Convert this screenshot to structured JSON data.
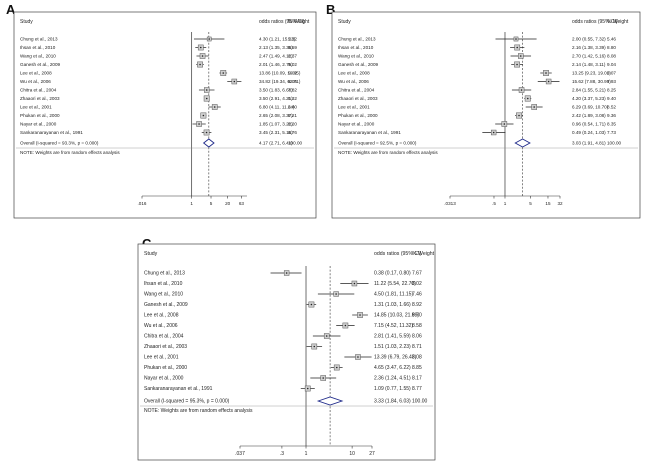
{
  "chart_data": [
    {
      "type": "forest",
      "panel": "A",
      "header": {
        "study": "Study",
        "ci": "odds ratios (95% CI)",
        "weight": "% Weight"
      },
      "xscale": "log",
      "xlim": [
        0.016,
        100
      ],
      "xticks": [
        ".016",
        "1",
        "5",
        "20",
        "63"
      ],
      "xtick_values": [
        0.016,
        1,
        5,
        20,
        63
      ],
      "null_line": 1,
      "rows": [
        {
          "study": "Chung et al., 2013",
          "or": 4.3,
          "lo": 1.21,
          "hi": 15.23,
          "ci_text": "4.30 (1.21, 15.23)",
          "weight": "5.22"
        },
        {
          "study": "Ihsan et al., 2010",
          "or": 2.13,
          "lo": 1.35,
          "hi": 3.36,
          "ci_text": "2.13 (1.35, 3.36)",
          "weight": "8.59"
        },
        {
          "study": "Wang et al., 2010",
          "or": 2.47,
          "lo": 1.49,
          "hi": 4.12,
          "ci_text": "2.47 (1.49, 4.12)",
          "weight": "8.37"
        },
        {
          "study": "Ganesh et al., 2009",
          "or": 2.01,
          "lo": 1.46,
          "hi": 2.75,
          "ci_text": "2.01 (1.46, 2.75)",
          "weight": "9.02"
        },
        {
          "study": "Lee et al., 2008",
          "or": 13.86,
          "lo": 10.09,
          "hi": 19.05,
          "ci_text": "13.86 (10.09, 19.05)",
          "weight": "9.02"
        },
        {
          "study": "Wu et al., 2006",
          "or": 34.82,
          "lo": 19.34,
          "hi": 62.71,
          "ci_text": "34.82 (19.34, 62.71)",
          "weight": "8.06"
        },
        {
          "study": "Chitra et al., 2004",
          "or": 3.5,
          "lo": 1.83,
          "hi": 6.68,
          "ci_text": "3.50 (1.83, 6.68)",
          "weight": "7.82"
        },
        {
          "study": "Zhaaori et al., 2003",
          "or": 3.5,
          "lo": 2.91,
          "hi": 4.21,
          "ci_text": "3.50 (2.91, 4.21)",
          "weight": "9.32"
        },
        {
          "study": "Lee et al., 2001",
          "or": 6.8,
          "lo": 4.11,
          "hi": 11.24,
          "ci_text": "6.80 (4.11, 11.24)",
          "weight": "8.40"
        },
        {
          "study": "Phukan et al., 2000",
          "or": 2.65,
          "lo": 2.08,
          "hi": 3.37,
          "ci_text": "2.65 (2.08, 3.37)",
          "weight": "9.21"
        },
        {
          "study": "Nayar et al., 2000",
          "or": 1.85,
          "lo": 1.07,
          "hi": 3.22,
          "ci_text": "1.85 (1.07, 3.22)",
          "weight": "8.20"
        },
        {
          "study": "Sankaranarayanan et al., 1991",
          "or": 3.45,
          "lo": 2.31,
          "hi": 5.16,
          "ci_text": "3.45 (2.31, 5.16)",
          "weight": "8.76"
        }
      ],
      "overall": {
        "label": "Overall  (I-squared = 93.3%, p = 0.000)",
        "or": 4.17,
        "lo": 2.71,
        "hi": 6.41,
        "ci_text": "4.17 (2.71, 6.41)",
        "weight": "100.00"
      },
      "note": "NOTE: Weights are from random effects analysis"
    },
    {
      "type": "forest",
      "panel": "B",
      "header": {
        "study": "Study",
        "ci": "odds ratios (95% CI)",
        "weight": "% Weight"
      },
      "xscale": "log",
      "xlim": [
        0.0313,
        32
      ],
      "xticks": [
        ".0313",
        ".5",
        "1",
        "5",
        "15",
        "32"
      ],
      "xtick_values": [
        0.0313,
        0.5,
        1,
        5,
        15,
        32
      ],
      "null_line": 1,
      "rows": [
        {
          "study": "Chung et al., 2013",
          "or": 2.0,
          "lo": 0.55,
          "hi": 7.32,
          "ci_text": "2.00 (0.55, 7.32)",
          "weight": "5.46"
        },
        {
          "study": "Ihsan et al., 2010",
          "or": 2.16,
          "lo": 1.38,
          "hi": 3.39,
          "ci_text": "2.16 (1.38, 3.39)",
          "weight": "8.80"
        },
        {
          "study": "Wang et al., 2010",
          "or": 2.7,
          "lo": 1.42,
          "hi": 5.16,
          "ci_text": "2.70 (1.42, 5.16)",
          "weight": "8.08"
        },
        {
          "study": "Ganesh et al., 2009",
          "or": 2.14,
          "lo": 1.48,
          "hi": 3.11,
          "ci_text": "2.14 (1.48, 3.11)",
          "weight": "9.04"
        },
        {
          "study": "Lee et al., 2008",
          "or": 13.25,
          "lo": 9.23,
          "hi": 19.02,
          "ci_text": "13.25 (9.23, 19.02)",
          "weight": "9.07"
        },
        {
          "study": "Wu et al., 2006",
          "or": 15.62,
          "lo": 7.88,
          "hi": 30.99,
          "ci_text": "15.62 (7.88, 30.99)",
          "weight": "7.93"
        },
        {
          "study": "Chitra et al., 2004",
          "or": 2.84,
          "lo": 1.55,
          "hi": 5.21,
          "ci_text": "2.84 (1.55, 5.21)",
          "weight": "8.25"
        },
        {
          "study": "Zhaaori et al., 2003",
          "or": 4.2,
          "lo": 3.37,
          "hi": 5.23,
          "ci_text": "4.20 (3.37, 5.23)",
          "weight": "9.40"
        },
        {
          "study": "Lee et al., 2001",
          "or": 6.29,
          "lo": 3.69,
          "hi": 10.7,
          "ci_text": "6.29 (3.69, 10.70)",
          "weight": "8.52"
        },
        {
          "study": "Phukan et al., 2000",
          "or": 2.42,
          "lo": 1.89,
          "hi": 3.08,
          "ci_text": "2.42 (1.89, 3.08)",
          "weight": "9.36"
        },
        {
          "study": "Nayar et al., 2000",
          "or": 0.96,
          "lo": 0.54,
          "hi": 1.71,
          "ci_text": "0.96 (0.54, 1.71)",
          "weight": "8.35"
        },
        {
          "study": "Sankaranarayanan et al., 1991",
          "or": 0.49,
          "lo": 0.24,
          "hi": 1.03,
          "ci_text": "0.49 (0.24, 1.03)",
          "weight": "7.73"
        }
      ],
      "overall": {
        "label": "Overall  (I-squared = 92.5%, p = 0.000)",
        "or": 3.03,
        "lo": 1.91,
        "hi": 4.81,
        "ci_text": "3.03 (1.91, 4.81)",
        "weight": "100.00"
      },
      "note": "NOTE: Weights are from random effects analysis"
    },
    {
      "type": "forest",
      "panel": "C",
      "header": {
        "study": "Study",
        "ci": "odds ratios (95% CI)",
        "weight": "% Weight"
      },
      "xscale": "log",
      "xlim": [
        0.037,
        27
      ],
      "xticks": [
        ".037",
        ".3",
        "1",
        "10",
        "27"
      ],
      "xtick_values": [
        0.037,
        0.3,
        1,
        10,
        27
      ],
      "null_line": 1,
      "rows": [
        {
          "study": "Chung et al., 2013",
          "or": 0.38,
          "lo": 0.17,
          "hi": 0.8,
          "ci_text": "0.38 (0.17, 0.80)",
          "weight": "7.67"
        },
        {
          "study": "Ihsan et al., 2010",
          "or": 11.22,
          "lo": 5.54,
          "hi": 22.7,
          "ci_text": "11.22 (5.54, 22.70)",
          "weight": "8.02"
        },
        {
          "study": "Wang et al., 2010",
          "or": 4.5,
          "lo": 1.81,
          "hi": 11.15,
          "ci_text": "4.50 (1.81, 11.15)",
          "weight": "7.46"
        },
        {
          "study": "Ganesh et al., 2009",
          "or": 1.31,
          "lo": 1.03,
          "hi": 1.66,
          "ci_text": "1.31 (1.03, 1.66)",
          "weight": "8.92"
        },
        {
          "study": "Lee et al., 2008",
          "or": 14.85,
          "lo": 10.03,
          "hi": 21.99,
          "ci_text": "14.85 (10.03, 21.99)",
          "weight": "8.70"
        },
        {
          "study": "Wu et al., 2006",
          "or": 7.15,
          "lo": 4.52,
          "hi": 11.32,
          "ci_text": "7.15 (4.52, 11.32)",
          "weight": "8.58"
        },
        {
          "study": "Chitra et al., 2004",
          "or": 2.81,
          "lo": 1.41,
          "hi": 5.59,
          "ci_text": "2.81 (1.41, 5.59)",
          "weight": "8.06"
        },
        {
          "study": "Zhaaori et al., 2003",
          "or": 1.51,
          "lo": 1.03,
          "hi": 2.23,
          "ci_text": "1.51 (1.03, 2.23)",
          "weight": "8.71"
        },
        {
          "study": "Lee et al., 2001",
          "or": 13.39,
          "lo": 6.79,
          "hi": 26.43,
          "ci_text": "13.39 (6.79, 26.43)",
          "weight": "8.08"
        },
        {
          "study": "Phukan et al., 2000",
          "or": 4.65,
          "lo": 3.47,
          "hi": 6.22,
          "ci_text": "4.65 (3.47, 6.22)",
          "weight": "8.85"
        },
        {
          "study": "Nayar et al., 2000",
          "or": 2.36,
          "lo": 1.24,
          "hi": 4.51,
          "ci_text": "2.36 (1.24, 4.51)",
          "weight": "8.17"
        },
        {
          "study": "Sankaranarayanan et al., 1991",
          "or": 1.09,
          "lo": 0.77,
          "hi": 1.55,
          "ci_text": "1.09 (0.77, 1.55)",
          "weight": "8.77"
        }
      ],
      "overall": {
        "label": "Overall  (I-squared = 95.3%, p = 0.000)",
        "or": 3.33,
        "lo": 1.84,
        "hi": 6.03,
        "ci_text": "3.33 (1.84, 6.03)",
        "weight": "100.00"
      },
      "note": "NOTE: Weights are from random effects analysis"
    }
  ]
}
